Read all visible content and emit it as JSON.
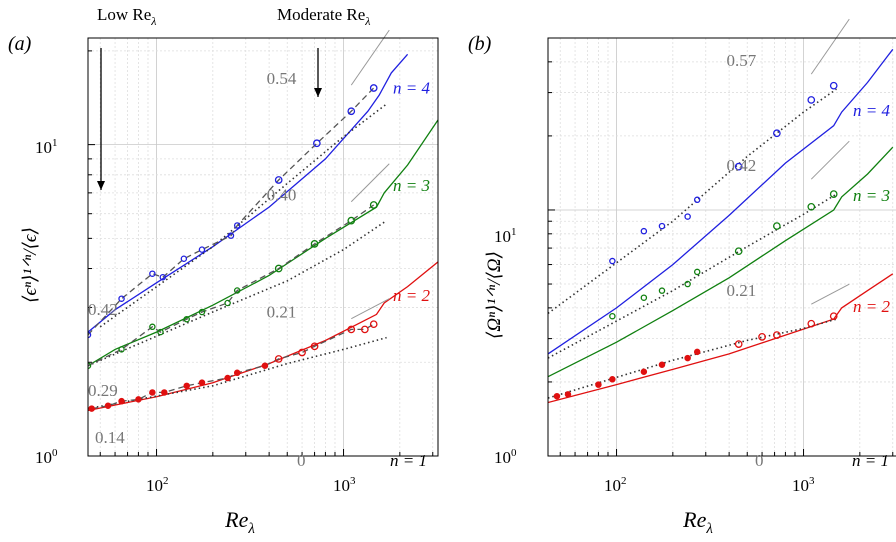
{
  "figure": {
    "header_low": "Low Re",
    "header_low_sub": "λ",
    "header_moderate": "Moderate Re",
    "header_moderate_sub": "λ"
  },
  "chart_data": [
    {
      "panel_label": "(a)",
      "type": "line",
      "xlabel": "Re",
      "xlabel_sub": "λ",
      "ylabel": "⟨ϵⁿ⟩¹ᐟⁿ/⟨ϵ⟩",
      "xscale": "log",
      "yscale": "log",
      "xlim": [
        43,
        3200
      ],
      "ylim": [
        1,
        22
      ],
      "x_ticks": [
        100,
        1000
      ],
      "y_ticks": [
        1,
        10
      ],
      "tick_labels_x": [
        "10²",
        "10³"
      ],
      "tick_labels_y": [
        "10⁰",
        "10¹"
      ],
      "grid": true,
      "series": [
        {
          "name": "n = 4",
          "color": "#2020e0",
          "line": [
            [
              43,
              2.5
            ],
            [
              60,
              2.95
            ],
            [
              100,
              3.6
            ],
            [
              200,
              4.7
            ],
            [
              400,
              6.3
            ],
            [
              800,
              9.0
            ],
            [
              1350,
              12.8
            ],
            [
              1550,
              14.4
            ],
            [
              1800,
              17
            ],
            [
              2200,
              19.5
            ]
          ],
          "points": [
            [
              43,
              2.45
            ],
            [
              65,
              3.2
            ],
            [
              95,
              3.85
            ],
            [
              108,
              3.75
            ],
            [
              140,
              4.3
            ],
            [
              175,
              4.6
            ],
            [
              250,
              5.1
            ],
            [
              270,
              5.5
            ],
            [
              450,
              7.7
            ],
            [
              720,
              10.1
            ],
            [
              1100,
              12.8
            ],
            [
              1450,
              15.2
            ]
          ],
          "fit": [
            [
              50,
              2.6
            ],
            [
              200,
              4.7
            ],
            [
              500,
              7.5
            ],
            [
              1000,
              10.6
            ],
            [
              1700,
              13.5
            ]
          ],
          "fit_label": "0.54",
          "label": "n = 4"
        },
        {
          "name": "n = 3",
          "color": "#108010",
          "line": [
            [
              43,
              1.95
            ],
            [
              60,
              2.2
            ],
            [
              100,
              2.5
            ],
            [
              200,
              3.05
            ],
            [
              400,
              3.8
            ],
            [
              800,
              5.0
            ],
            [
              1500,
              6.3
            ],
            [
              1650,
              7.0
            ],
            [
              2200,
              8.6
            ],
            [
              3200,
              12
            ]
          ],
          "points": [
            [
              43,
              1.95
            ],
            [
              65,
              2.2
            ],
            [
              95,
              2.6
            ],
            [
              105,
              2.5
            ],
            [
              145,
              2.75
            ],
            [
              175,
              2.9
            ],
            [
              240,
              3.1
            ],
            [
              270,
              3.4
            ],
            [
              450,
              4.0
            ],
            [
              700,
              4.8
            ],
            [
              1100,
              5.7
            ],
            [
              1450,
              6.4
            ]
          ],
          "fit": [
            [
              43,
              1.95
            ],
            [
              200,
              2.9
            ],
            [
              500,
              3.65
            ],
            [
              1000,
              4.6
            ],
            [
              1700,
              5.7
            ]
          ],
          "fit_label": "0.40",
          "label": "n = 3"
        },
        {
          "name": "n = 2",
          "color": "#e01010",
          "line": [
            [
              43,
              1.4
            ],
            [
              100,
              1.55
            ],
            [
              200,
              1.72
            ],
            [
              400,
              1.98
            ],
            [
              800,
              2.35
            ],
            [
              1500,
              2.85
            ],
            [
              1650,
              3.1
            ],
            [
              2200,
              3.5
            ],
            [
              3200,
              4.2
            ]
          ],
          "points": [
            [
              45,
              1.42
            ],
            [
              55,
              1.45
            ],
            [
              65,
              1.5
            ],
            [
              80,
              1.52
            ],
            [
              95,
              1.6
            ],
            [
              110,
              1.6
            ],
            [
              145,
              1.68
            ],
            [
              175,
              1.72
            ],
            [
              240,
              1.78
            ],
            [
              270,
              1.85
            ],
            [
              380,
              1.95
            ],
            [
              450,
              2.05
            ],
            [
              600,
              2.15
            ],
            [
              700,
              2.25
            ],
            [
              1100,
              2.55
            ],
            [
              1300,
              2.55
            ],
            [
              1450,
              2.65
            ]
          ],
          "fit": [
            [
              43,
              1.42
            ],
            [
              200,
              1.68
            ],
            [
              500,
              1.98
            ],
            [
              1000,
              2.2
            ],
            [
              1700,
              2.4
            ]
          ],
          "fit_label": "0.21",
          "label": "n = 2"
        }
      ],
      "extra_labels": {
        "n1": "n = 1",
        "zero": "0",
        "low_042": "0.42",
        "low_029": "0.29",
        "low_014": "0.14"
      },
      "arrows": [
        {
          "x": 43,
          "label": "Low Re"
        },
        {
          "x": 700,
          "label": "Moderate Re"
        }
      ]
    },
    {
      "panel_label": "(b)",
      "type": "line",
      "xlabel": "Re",
      "xlabel_sub": "λ",
      "ylabel": "⟨Ωⁿ⟩¹ᐟⁿ/⟨Ω⟩",
      "xscale": "log",
      "yscale": "log",
      "xlim": [
        43,
        3200
      ],
      "ylim": [
        1,
        50
      ],
      "x_ticks": [
        100,
        1000
      ],
      "y_ticks": [
        1,
        10
      ],
      "tick_labels_x": [
        "10²",
        "10³"
      ],
      "tick_labels_y": [
        "10⁰",
        "10¹"
      ],
      "grid": true,
      "series": [
        {
          "name": "n = 4",
          "color": "#2020e0",
          "line": [
            [
              43,
              2.6
            ],
            [
              100,
              4.0
            ],
            [
              200,
              6.0
            ],
            [
              400,
              9.5
            ],
            [
              800,
              15.5
            ],
            [
              1450,
              22
            ],
            [
              1600,
              25
            ],
            [
              2200,
              33
            ],
            [
              3000,
              45
            ]
          ],
          "points": [
            [
              95,
              6.2
            ],
            [
              140,
              8.2
            ],
            [
              175,
              8.6
            ],
            [
              240,
              9.4
            ],
            [
              270,
              11.0
            ],
            [
              450,
              15.0
            ],
            [
              720,
              20.5
            ],
            [
              1100,
              28.0
            ],
            [
              1450,
              32.0
            ]
          ],
          "fit": [
            [
              43,
              3.8
            ],
            [
              200,
              9.0
            ],
            [
              500,
              16.5
            ],
            [
              1000,
              25.0
            ],
            [
              1500,
              31.0
            ]
          ],
          "fit_label": "0.57",
          "label": "n = 4"
        },
        {
          "name": "n = 3",
          "color": "#108010",
          "line": [
            [
              43,
              2.1
            ],
            [
              100,
              2.9
            ],
            [
              200,
              3.9
            ],
            [
              400,
              5.3
            ],
            [
              800,
              7.5
            ],
            [
              1450,
              10.0
            ],
            [
              1600,
              11.3
            ],
            [
              2200,
              14
            ],
            [
              3000,
              18
            ]
          ],
          "points": [
            [
              95,
              3.7
            ],
            [
              140,
              4.4
            ],
            [
              175,
              4.7
            ],
            [
              240,
              5.0
            ],
            [
              270,
              5.6
            ],
            [
              450,
              6.8
            ],
            [
              720,
              8.6
            ],
            [
              1100,
              10.3
            ],
            [
              1450,
              11.6
            ]
          ],
          "fit": [
            [
              43,
              2.5
            ],
            [
              200,
              4.7
            ],
            [
              500,
              7.1
            ],
            [
              1000,
              9.6
            ],
            [
              1500,
              11.6
            ]
          ],
          "fit_label": "0.42",
          "label": "n = 3"
        },
        {
          "name": "n = 2",
          "color": "#e01010",
          "line": [
            [
              43,
              1.65
            ],
            [
              100,
              1.95
            ],
            [
              200,
              2.25
            ],
            [
              400,
              2.6
            ],
            [
              800,
              3.1
            ],
            [
              1450,
              3.6
            ],
            [
              1600,
              4.0
            ],
            [
              2200,
              4.7
            ],
            [
              3000,
              5.5
            ]
          ],
          "points": [
            [
              48,
              1.75
            ],
            [
              55,
              1.78
            ],
            [
              80,
              1.95
            ],
            [
              95,
              2.05
            ],
            [
              140,
              2.2
            ],
            [
              175,
              2.35
            ],
            [
              240,
              2.5
            ],
            [
              270,
              2.65
            ],
            [
              450,
              2.85
            ],
            [
              600,
              3.05
            ],
            [
              720,
              3.1
            ],
            [
              1100,
              3.45
            ],
            [
              1450,
              3.7
            ]
          ],
          "fit": [
            [
              43,
              1.72
            ],
            [
              200,
              2.45
            ],
            [
              500,
              2.95
            ],
            [
              1000,
              3.3
            ],
            [
              1500,
              3.6
            ]
          ],
          "fit_label": "0.21",
          "label": "n = 2"
        }
      ],
      "extra_labels": {
        "n1": "n = 1",
        "zero": "0"
      }
    }
  ]
}
